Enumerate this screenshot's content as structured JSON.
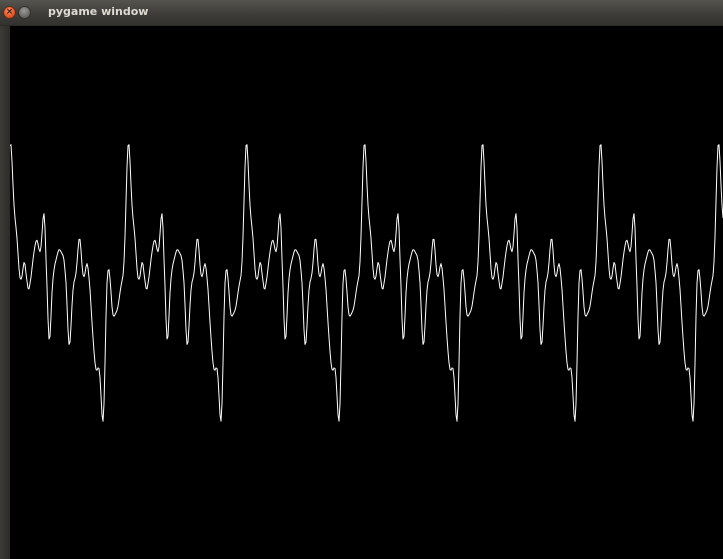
{
  "window": {
    "title": "pygame window",
    "background_color": "#000000",
    "line_color": "#ffffff",
    "titlebar_color": "#3c3b37"
  },
  "controls": {
    "close_icon": "close-icon",
    "minimize_icon": "minimize-icon"
  }
}
